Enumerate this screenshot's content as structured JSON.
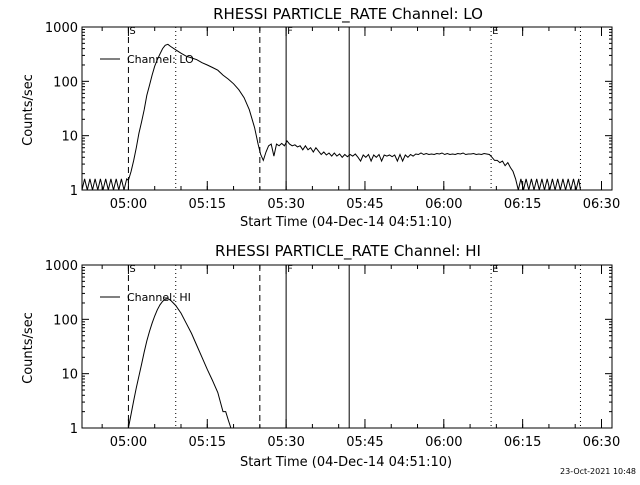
{
  "footer": {
    "timestamp": "23-Oct-2021 10:48"
  },
  "colors": {
    "background": "#ffffff",
    "foreground": "#000000"
  },
  "chart_data": [
    {
      "type": "line",
      "title": "RHESSI PARTICLE_RATE Channel: LO",
      "xlabel": "Start Time (04-Dec-14 04:51:10)",
      "ylabel": "Counts/sec",
      "yscale": "log",
      "xlim": [
        "04:51:10",
        "06:32:00"
      ],
      "ylim": [
        1,
        1000
      ],
      "x_ticks": [
        "05:00",
        "05:15",
        "05:30",
        "05:45",
        "06:00",
        "06:15",
        "06:30"
      ],
      "y_ticks": [
        "1",
        "10",
        "100",
        "1000"
      ],
      "grid": false,
      "legend": {
        "position": "top-left",
        "entries": [
          "Channel: LO"
        ]
      },
      "markers": [
        {
          "label": "S",
          "x": "05:00",
          "style": "dashed"
        },
        {
          "label": "",
          "x": "05:09",
          "style": "dotted"
        },
        {
          "label": "",
          "x": "05:25",
          "style": "dashed"
        },
        {
          "label": "F",
          "x": "05:30",
          "style": "solid"
        },
        {
          "label": "",
          "x": "05:42",
          "style": "solid"
        },
        {
          "label": "E",
          "x": "06:09",
          "style": "dotted"
        },
        {
          "label": "",
          "x": "06:26",
          "style": "dotted"
        }
      ],
      "series": [
        {
          "name": "Channel: LO",
          "points": [
            [
              "04:51:10",
              1.0
            ],
            [
              "04:51:40",
              1.6
            ],
            [
              "04:52:10",
              1.0
            ],
            [
              "04:52:40",
              1.6
            ],
            [
              "04:53:10",
              1.0
            ],
            [
              "04:53:40",
              1.6
            ],
            [
              "04:54:10",
              1.0
            ],
            [
              "04:54:40",
              1.6
            ],
            [
              "04:55:10",
              1.0
            ],
            [
              "04:55:40",
              1.6
            ],
            [
              "04:56:10",
              1.0
            ],
            [
              "04:56:40",
              1.6
            ],
            [
              "04:57:10",
              1.0
            ],
            [
              "04:57:40",
              1.6
            ],
            [
              "04:58:10",
              1.0
            ],
            [
              "04:58:40",
              1.6
            ],
            [
              "04:59:10",
              1.0
            ],
            [
              "04:59:40",
              1.6
            ],
            [
              "05:00:00",
              1.5
            ],
            [
              "05:00:30",
              2.2
            ],
            [
              "05:01:00",
              3.5
            ],
            [
              "05:01:30",
              6.0
            ],
            [
              "05:02:00",
              11
            ],
            [
              "05:02:30",
              18
            ],
            [
              "05:03:00",
              30
            ],
            [
              "05:03:30",
              55
            ],
            [
              "05:04:00",
              85
            ],
            [
              "05:04:30",
              130
            ],
            [
              "05:05:00",
              190
            ],
            [
              "05:05:30",
              250
            ],
            [
              "05:06:00",
              320
            ],
            [
              "05:06:30",
              400
            ],
            [
              "05:07:00",
              460
            ],
            [
              "05:07:30",
              480
            ],
            [
              "05:08:00",
              440
            ],
            [
              "05:09:00",
              380
            ],
            [
              "05:10:00",
              330
            ],
            [
              "05:11:00",
              290
            ],
            [
              "05:12:00",
              270
            ],
            [
              "05:13:00",
              250
            ],
            [
              "05:14:00",
              220
            ],
            [
              "05:15:00",
              200
            ],
            [
              "05:16:00",
              180
            ],
            [
              "05:17:00",
              160
            ],
            [
              "05:18:00",
              130
            ],
            [
              "05:19:00",
              110
            ],
            [
              "05:20:00",
              90
            ],
            [
              "05:21:00",
              70
            ],
            [
              "05:22:00",
              50
            ],
            [
              "05:23:00",
              30
            ],
            [
              "05:24:00",
              14
            ],
            [
              "05:24:40",
              7
            ],
            [
              "05:25:10",
              4.5
            ],
            [
              "05:25:40",
              3.5
            ],
            [
              "05:26:10",
              5
            ],
            [
              "05:26:40",
              6.5
            ],
            [
              "05:27:10",
              7
            ],
            [
              "05:27:40",
              4.2
            ],
            [
              "05:28:10",
              7
            ],
            [
              "05:28:40",
              6.5
            ],
            [
              "05:29:10",
              7.2
            ],
            [
              "05:29:40",
              6.5
            ],
            [
              "05:30:10",
              8
            ],
            [
              "05:30:40",
              7
            ],
            [
              "05:31:10",
              6.5
            ],
            [
              "05:31:40",
              6.8
            ],
            [
              "05:32:10",
              6.2
            ],
            [
              "05:32:40",
              6.5
            ],
            [
              "05:33:10",
              5.5
            ],
            [
              "05:33:40",
              6.5
            ],
            [
              "05:34:10",
              5.5
            ],
            [
              "05:34:40",
              6.0
            ],
            [
              "05:35:10",
              5.0
            ],
            [
              "05:35:40",
              6.0
            ],
            [
              "05:36:10",
              5.2
            ],
            [
              "05:36:40",
              4.5
            ],
            [
              "05:37:10",
              5.0
            ],
            [
              "05:37:40",
              4.4
            ],
            [
              "05:38:10",
              4.8
            ],
            [
              "05:38:40",
              4.2
            ],
            [
              "05:39:10",
              4.8
            ],
            [
              "05:39:40",
              4.2
            ],
            [
              "05:40:10",
              4.6
            ],
            [
              "05:40:40",
              4.0
            ],
            [
              "05:41:10",
              4.5
            ],
            [
              "05:41:40",
              4.1
            ],
            [
              "05:42:10",
              4.5
            ],
            [
              "05:42:40",
              4.2
            ],
            [
              "05:43:10",
              4.6
            ],
            [
              "05:43:40",
              4.0
            ],
            [
              "05:44:10",
              3.4
            ],
            [
              "05:44:40",
              4.4
            ],
            [
              "05:45:10",
              4.0
            ],
            [
              "05:45:40",
              4.5
            ],
            [
              "05:46:10",
              3.4
            ],
            [
              "05:46:40",
              4.4
            ],
            [
              "05:47:10",
              4.0
            ],
            [
              "05:47:40",
              4.5
            ],
            [
              "05:48:10",
              3.4
            ],
            [
              "05:48:40",
              4.4
            ],
            [
              "05:49:10",
              4.2
            ],
            [
              "05:49:40",
              4.4
            ],
            [
              "05:50:10",
              4.1
            ],
            [
              "05:50:40",
              4.4
            ],
            [
              "05:51:10",
              3.4
            ],
            [
              "05:51:40",
              4.5
            ],
            [
              "05:52:10",
              3.4
            ],
            [
              "05:52:40",
              4.4
            ],
            [
              "05:53:10",
              4.0
            ],
            [
              "05:53:40",
              4.5
            ],
            [
              "05:54:10",
              4.2
            ],
            [
              "05:54:40",
              4.6
            ],
            [
              "05:55:10",
              4.5
            ],
            [
              "05:55:40",
              4.8
            ],
            [
              "05:56:10",
              4.5
            ],
            [
              "05:56:40",
              4.7
            ],
            [
              "05:57:10",
              4.5
            ],
            [
              "05:57:40",
              4.6
            ],
            [
              "05:58:10",
              4.5
            ],
            [
              "05:58:40",
              4.7
            ],
            [
              "05:59:10",
              4.6
            ],
            [
              "05:59:40",
              4.8
            ],
            [
              "06:00:10",
              4.5
            ],
            [
              "06:00:40",
              4.7
            ],
            [
              "06:01:10",
              4.5
            ],
            [
              "06:01:40",
              4.6
            ],
            [
              "06:02:10",
              4.5
            ],
            [
              "06:02:40",
              4.7
            ],
            [
              "06:03:10",
              4.6
            ],
            [
              "06:03:40",
              4.8
            ],
            [
              "06:04:10",
              4.5
            ],
            [
              "06:04:40",
              4.6
            ],
            [
              "06:05:10",
              4.6
            ],
            [
              "06:05:40",
              4.7
            ],
            [
              "06:06:10",
              4.5
            ],
            [
              "06:06:40",
              4.6
            ],
            [
              "06:07:10",
              4.5
            ],
            [
              "06:07:40",
              4.7
            ],
            [
              "06:08:10",
              4.6
            ],
            [
              "06:08:40",
              4.5
            ],
            [
              "06:09:10",
              4.0
            ],
            [
              "06:09:40",
              3.5
            ],
            [
              "06:10:10",
              3.5
            ],
            [
              "06:10:40",
              3.2
            ],
            [
              "06:11:10",
              3.4
            ],
            [
              "06:11:40",
              2.8
            ],
            [
              "06:12:10",
              3.2
            ],
            [
              "06:12:40",
              2.6
            ],
            [
              "06:13:10",
              2.2
            ],
            [
              "06:13:40",
              1.6
            ],
            [
              "06:14:10",
              1.0
            ],
            [
              "06:14:40",
              1.6
            ],
            [
              "06:15:10",
              1.0
            ],
            [
              "06:15:40",
              1.6
            ],
            [
              "06:16:10",
              1.0
            ],
            [
              "06:16:40",
              1.6
            ],
            [
              "06:17:10",
              1.0
            ],
            [
              "06:17:40",
              1.6
            ],
            [
              "06:18:10",
              1.0
            ],
            [
              "06:18:40",
              1.6
            ],
            [
              "06:19:10",
              1.0
            ],
            [
              "06:19:40",
              1.6
            ],
            [
              "06:20:10",
              1.0
            ],
            [
              "06:20:40",
              1.6
            ],
            [
              "06:21:10",
              1.0
            ],
            [
              "06:21:40",
              1.6
            ],
            [
              "06:22:10",
              1.0
            ],
            [
              "06:22:40",
              1.6
            ],
            [
              "06:23:10",
              1.0
            ],
            [
              "06:23:40",
              1.6
            ],
            [
              "06:24:10",
              1.0
            ],
            [
              "06:24:40",
              1.6
            ],
            [
              "06:25:10",
              1.0
            ],
            [
              "06:25:40",
              1.6
            ],
            [
              "06:26:00",
              1.0
            ]
          ]
        }
      ]
    },
    {
      "type": "line",
      "title": "RHESSI PARTICLE_RATE Channel: HI",
      "xlabel": "Start Time (04-Dec-14 04:51:10)",
      "ylabel": "Counts/sec",
      "yscale": "log",
      "xlim": [
        "04:51:10",
        "06:32:00"
      ],
      "ylim": [
        1,
        1000
      ],
      "x_ticks": [
        "05:00",
        "05:15",
        "05:30",
        "05:45",
        "06:00",
        "06:15",
        "06:30"
      ],
      "y_ticks": [
        "1",
        "10",
        "100",
        "1000"
      ],
      "grid": false,
      "legend": {
        "position": "top-left",
        "entries": [
          "Channel: HI"
        ]
      },
      "markers": [
        {
          "label": "S",
          "x": "05:00",
          "style": "dashed"
        },
        {
          "label": "",
          "x": "05:09",
          "style": "dotted"
        },
        {
          "label": "",
          "x": "05:25",
          "style": "dashed"
        },
        {
          "label": "F",
          "x": "05:30",
          "style": "solid"
        },
        {
          "label": "",
          "x": "05:42",
          "style": "solid"
        },
        {
          "label": "E",
          "x": "06:09",
          "style": "dotted"
        },
        {
          "label": "",
          "x": "06:26",
          "style": "dotted"
        }
      ],
      "series": [
        {
          "name": "Channel: HI",
          "points": [
            [
              "05:00:00",
              1.0
            ],
            [
              "05:00:30",
              1.8
            ],
            [
              "05:01:00",
              3.2
            ],
            [
              "05:01:30",
              5.5
            ],
            [
              "05:02:00",
              9
            ],
            [
              "05:02:30",
              15
            ],
            [
              "05:03:00",
              25
            ],
            [
              "05:03:30",
              40
            ],
            [
              "05:04:00",
              60
            ],
            [
              "05:04:30",
              85
            ],
            [
              "05:05:00",
              115
            ],
            [
              "05:05:30",
              150
            ],
            [
              "05:06:00",
              185
            ],
            [
              "05:06:30",
              215
            ],
            [
              "05:07:00",
              235
            ],
            [
              "05:07:30",
              240
            ],
            [
              "05:08:00",
              225
            ],
            [
              "05:09:00",
              180
            ],
            [
              "05:10:00",
              130
            ],
            [
              "05:11:00",
              85
            ],
            [
              "05:12:00",
              55
            ],
            [
              "05:13:00",
              33
            ],
            [
              "05:14:00",
              20
            ],
            [
              "05:15:00",
              12
            ],
            [
              "05:16:00",
              7.5
            ],
            [
              "05:17:00",
              4.5
            ],
            [
              "05:17:30",
              3.0
            ],
            [
              "05:18:00",
              2.0
            ],
            [
              "05:18:30",
              2.0
            ],
            [
              "05:19:00",
              1.4
            ],
            [
              "05:19:30",
              1.0
            ]
          ]
        }
      ]
    }
  ]
}
